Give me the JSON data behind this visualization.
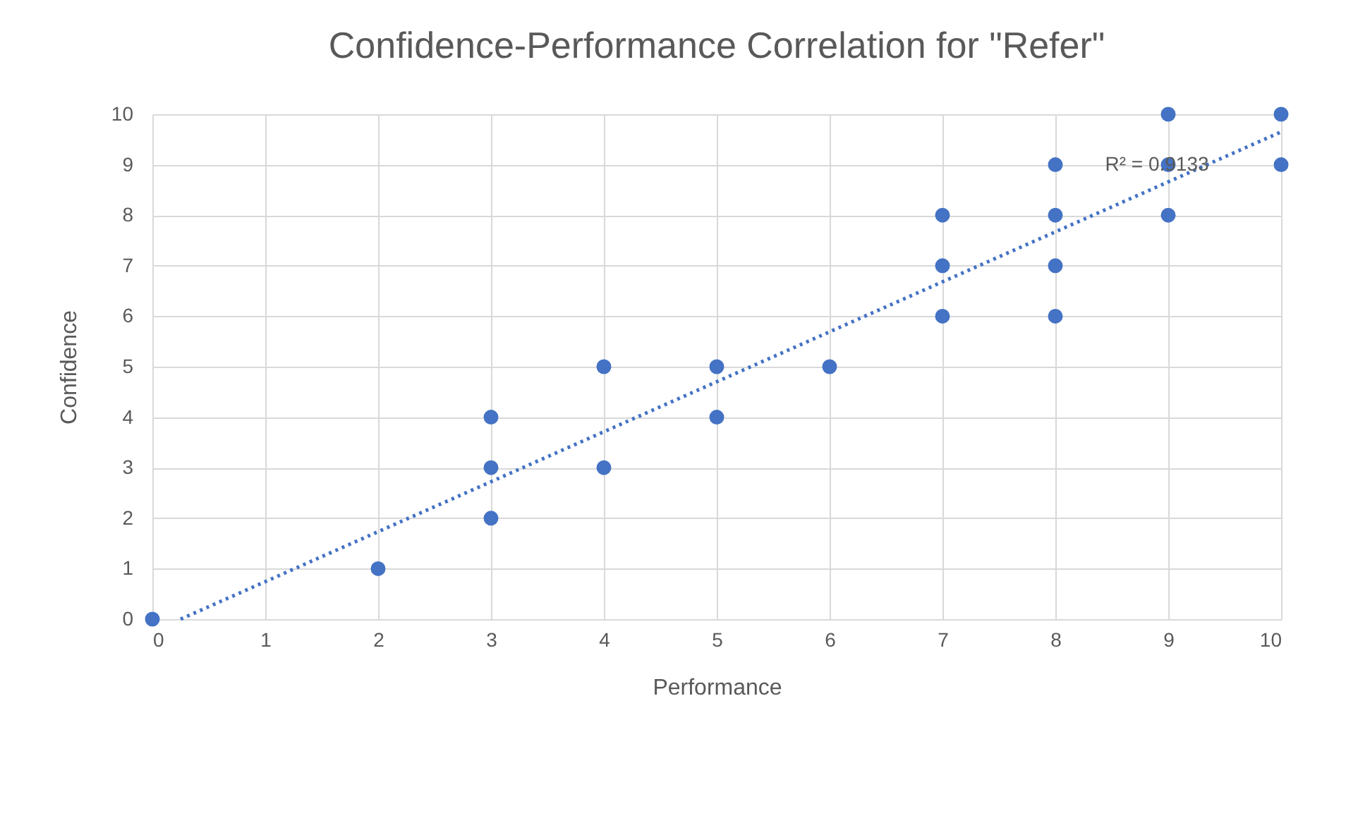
{
  "chart_data": {
    "type": "scatter",
    "title": "Confidence-Performance Correlation for \"Refer\"",
    "xlabel": "Performance",
    "ylabel": "Confidence",
    "x": [
      0,
      2,
      3,
      3,
      3,
      4,
      4,
      5,
      5,
      6,
      7,
      7,
      7,
      8,
      8,
      8,
      8,
      9,
      9,
      9,
      10,
      10
    ],
    "series": [
      {
        "color": "#4472c4",
        "marker": "circle",
        "values": [
          0,
          1,
          2,
          3,
          4,
          3,
          5,
          4,
          5,
          5,
          6,
          7,
          8,
          6,
          7,
          8,
          9,
          8,
          9,
          10,
          9,
          10
        ]
      },
      {
        "type": "line",
        "color": "#4472c4",
        "line_style": "dotted",
        "marker": "none",
        "x": [
          0.25,
          10
        ],
        "values": [
          0,
          9.65
        ]
      }
    ],
    "annotations": [
      {
        "text": "R² = 0.9133",
        "x": 8.9,
        "y": 9
      }
    ],
    "xlim": [
      0,
      10
    ],
    "ylim": [
      0,
      10
    ],
    "xticks": [
      0,
      1,
      2,
      3,
      4,
      5,
      6,
      7,
      8,
      9,
      10
    ],
    "yticks": [
      0,
      1,
      2,
      3,
      4,
      5,
      6,
      7,
      8,
      9,
      10
    ],
    "grid": true
  }
}
